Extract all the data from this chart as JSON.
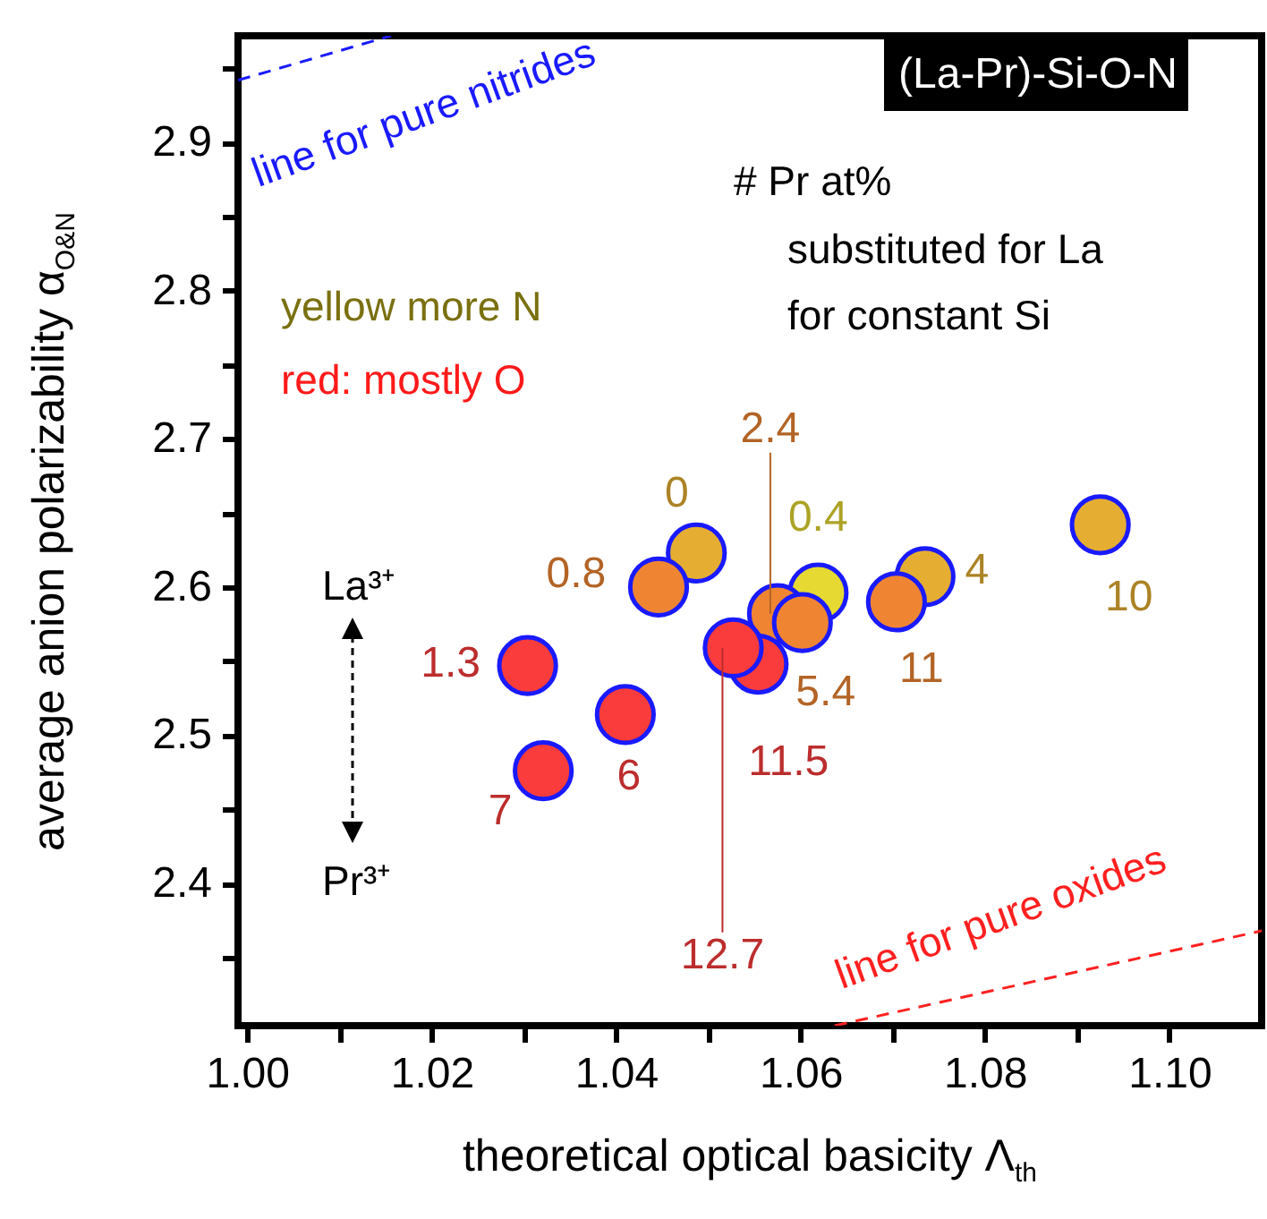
{
  "chart_data": {
    "type": "scatter",
    "marker": "circle",
    "xlabel": "theoretical optical basicity Λ$_{th}$",
    "ylabel": "average anion polarizability α$_{O&N}$",
    "xlim": [
      0.999,
      1.11
    ],
    "ylim": [
      2.304,
      2.972
    ],
    "xticks": [
      {
        "value": 1,
        "label": "1.00"
      },
      {
        "value": 1.01,
        "label": null
      },
      1.02,
      {
        "value": 1.03,
        "label": null
      },
      1.04,
      {
        "value": 1.05,
        "label": null
      },
      1.06,
      {
        "value": 1.07,
        "label": null
      },
      1.08,
      {
        "value": 1.09,
        "label": null
      },
      {
        "value": 1.1,
        "label": "1.10"
      }
    ],
    "yticks": [
      {
        "value": 2.35,
        "label": null
      },
      2.4,
      {
        "value": 2.45,
        "label": null
      },
      2.5,
      {
        "value": 2.55,
        "label": null
      },
      2.6,
      {
        "value": 2.65,
        "label": null
      },
      2.7,
      {
        "value": 2.75,
        "label": null
      },
      2.8,
      {
        "value": 2.85,
        "label": null
      },
      2.9,
      {
        "value": 2.95,
        "label": null
      }
    ],
    "series": [
      {
        "color": "#e5ae32",
        "x": [
          1.0487,
          1.0735,
          1.0925
        ],
        "values": [
          2.623,
          2.607,
          2.642
        ]
      },
      {
        "color": "#e5d932",
        "x": [
          1.0619
        ],
        "values": [
          2.596
        ]
      },
      {
        "color": "#ef8532",
        "x": [
          1.0446,
          1.0575,
          1.0602,
          1.0704
        ],
        "values": [
          2.6,
          2.582,
          2.576,
          2.59
        ]
      },
      {
        "color": "#fa3c3c",
        "x": [
          1.0304,
          1.041,
          1.0321,
          1.0554,
          1.0527
        ],
        "values": [
          2.547,
          2.514,
          2.476,
          2.548,
          2.559
        ]
      },
      {
        "type": "line",
        "name": "line for pure nitrides",
        "color": "#1a1aff",
        "line_style": "dashed",
        "marker": "none",
        "x": [
          0.999,
          1.0156
        ],
        "values": [
          2.942,
          2.972
        ]
      },
      {
        "type": "line",
        "name": "line for pure oxides",
        "color": "#ff2020",
        "line_style": "dashed",
        "marker": "none",
        "x": [
          1.0637,
          1.11
        ],
        "values": [
          2.304,
          2.368
        ]
      }
    ],
    "annotations": [
      "(La-Pr)-Si-O-N",
      "# Pr at%",
      "substituted for La",
      "for constant Si",
      "yellow more N",
      "red: mostly O",
      "La³⁺",
      "Pr³⁺",
      {
        "text": "0",
        "x": 1.0487,
        "y": 2.623
      },
      {
        "text": "4",
        "x": 1.0735,
        "y": 2.607
      },
      {
        "text": "10",
        "x": 1.0925,
        "y": 2.642
      },
      {
        "text": "0.4",
        "x": 1.0619,
        "y": 2.596
      },
      {
        "text": "0.8",
        "x": 1.0446,
        "y": 2.6
      },
      {
        "text": "2.4",
        "x": 1.0575,
        "y": 2.582
      },
      {
        "text": "5.4",
        "x": 1.0602,
        "y": 2.576
      },
      {
        "text": "11",
        "x": 1.0704,
        "y": 2.59
      },
      {
        "text": "1.3",
        "x": 1.0304,
        "y": 2.547
      },
      {
        "text": "6",
        "x": 1.041,
        "y": 2.514
      },
      {
        "text": "7",
        "x": 1.0321,
        "y": 2.476
      },
      {
        "text": "11.5",
        "x": 1.0554,
        "y": 2.548
      },
      {
        "text": "12.7",
        "x": 1.0527,
        "y": 2.559
      }
    ]
  }
}
